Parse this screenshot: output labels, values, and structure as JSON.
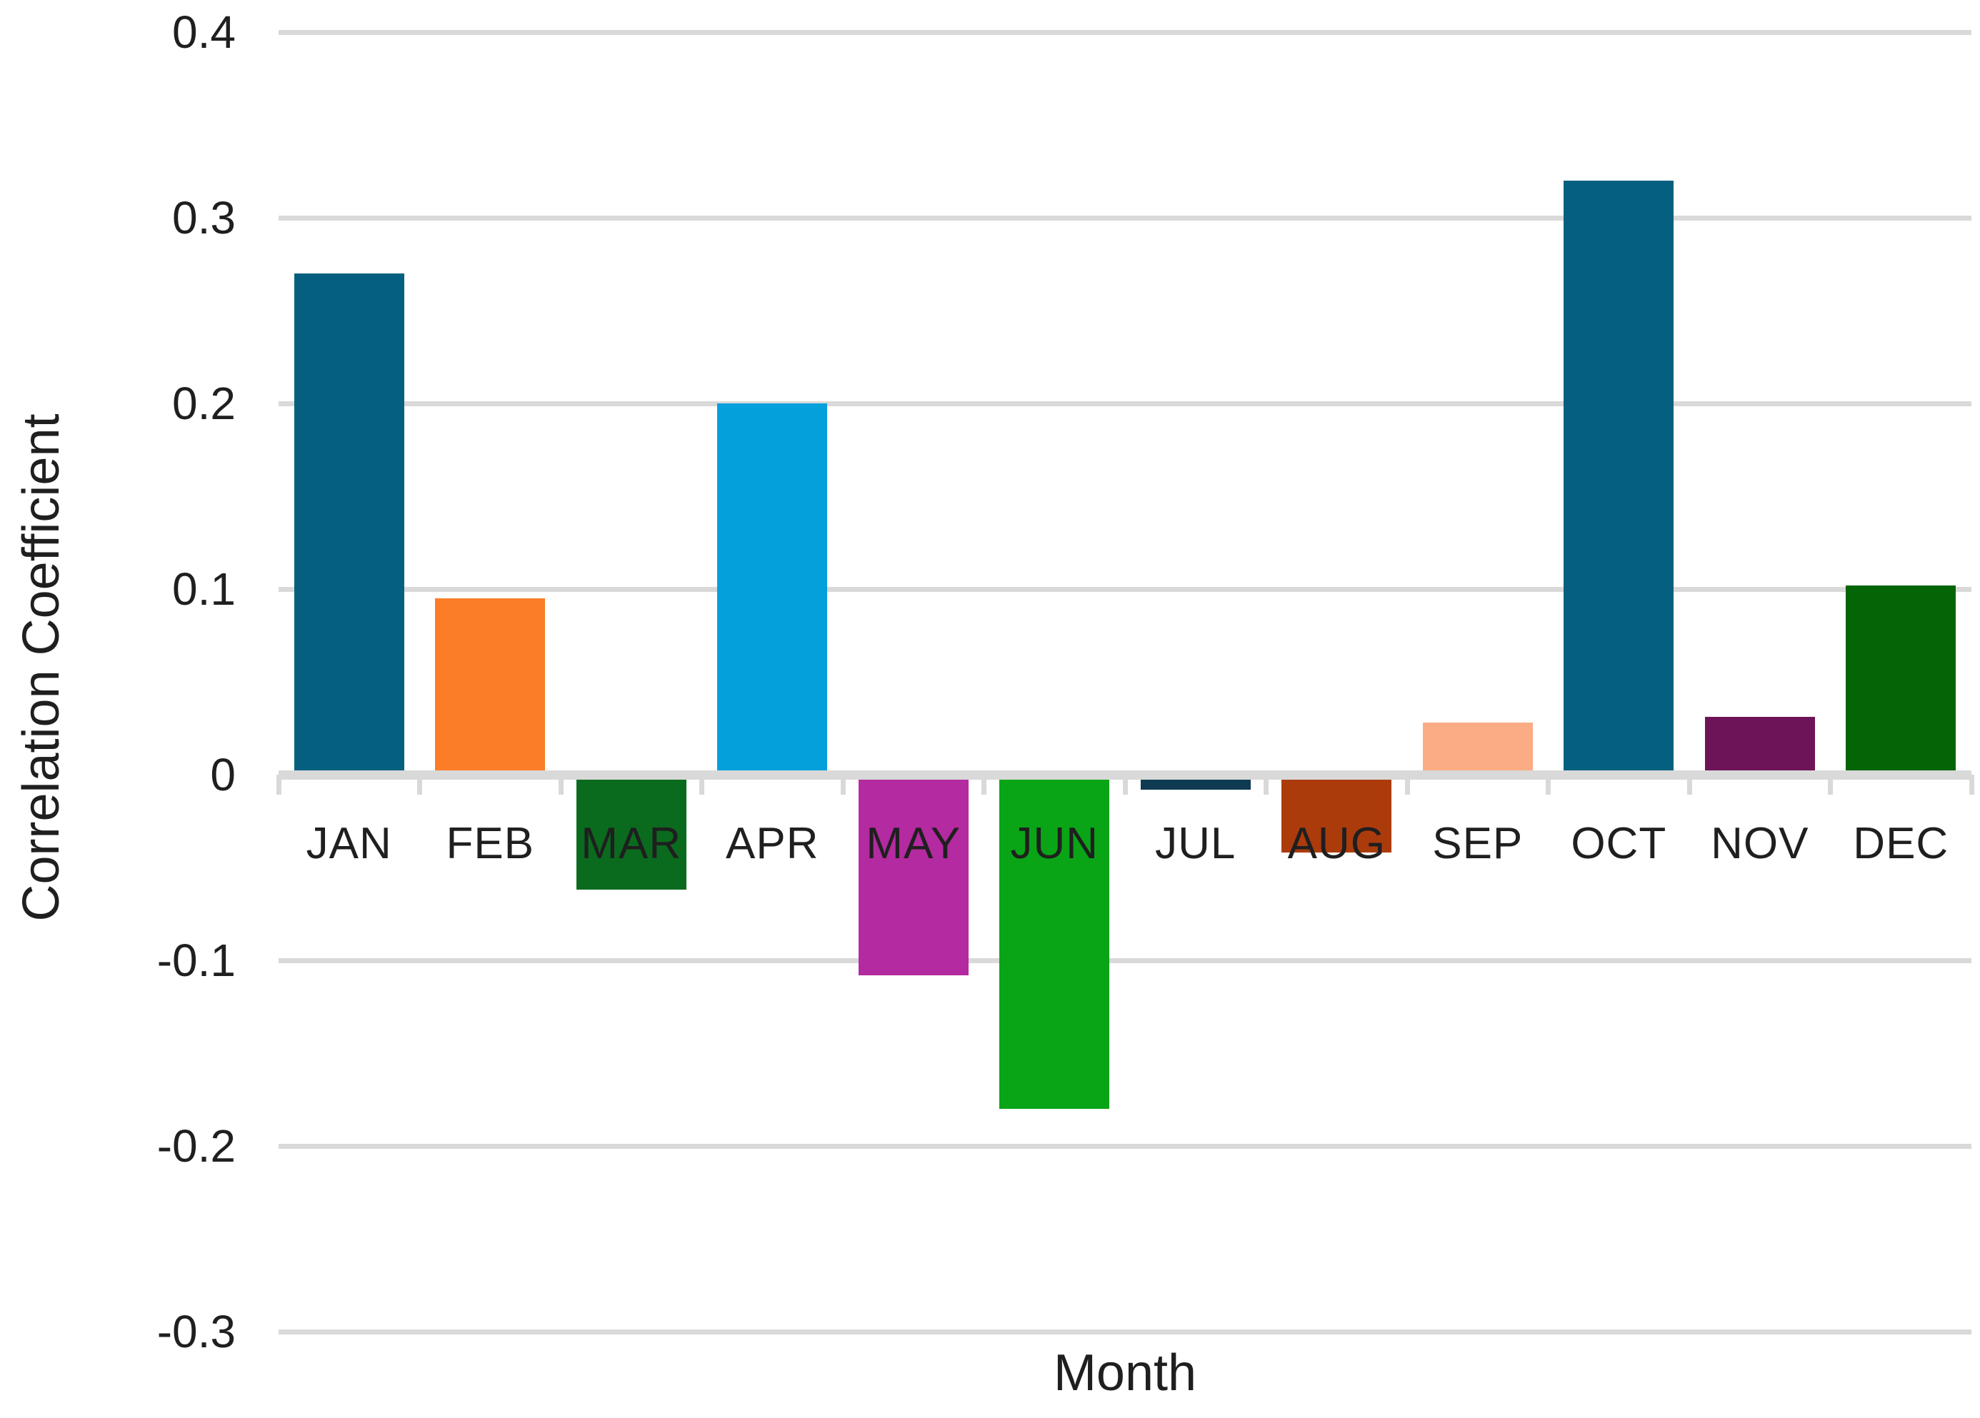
{
  "chart_data": {
    "type": "bar",
    "title": "",
    "xlabel": "Month",
    "ylabel": "Correlation Coefficient",
    "categories": [
      "JAN",
      "FEB",
      "MAR",
      "APR",
      "MAY",
      "JUN",
      "JUL",
      "AUG",
      "SEP",
      "OCT",
      "NOV",
      "DEC"
    ],
    "values": [
      0.27,
      0.095,
      -0.062,
      0.2,
      -0.108,
      -0.18,
      -0.008,
      -0.042,
      0.028,
      0.32,
      0.031,
      0.102
    ],
    "bar_colors": [
      "#056080",
      "#fb7d28",
      "#0a6b1e",
      "#04a0dc",
      "#b42aa0",
      "#0aa417",
      "#0e3a52",
      "#ac3b0c",
      "#fbac84",
      "#056080",
      "#6d1458",
      "#046507"
    ],
    "ylim": [
      -0.3,
      0.4
    ],
    "ytick_step": 0.1,
    "ytick_labels": [
      "0.4",
      "0.3",
      "0.2",
      "0.1",
      "0",
      "-0.1",
      "-0.2",
      "-0.3"
    ],
    "grid": "horizontal",
    "gridline_color": "#d9d9d9",
    "axis_line_color": "#d9d9d9",
    "text_color": "#1f1f1f",
    "legend": "none",
    "background_color": "#ffffff"
  }
}
